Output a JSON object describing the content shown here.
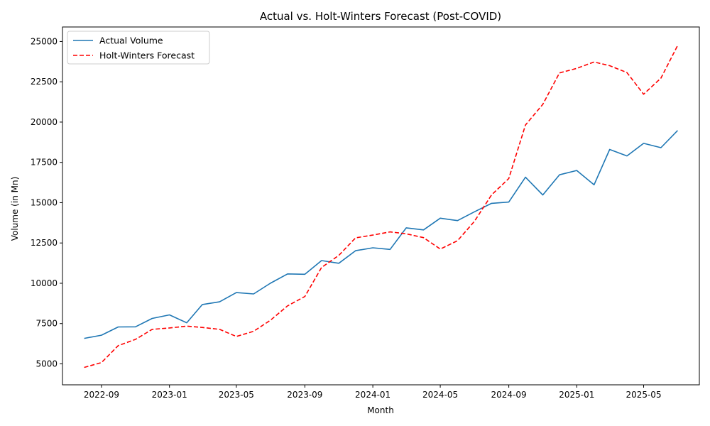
{
  "chart_data": {
    "type": "line",
    "title": "Actual vs. Holt-Winters Forecast (Post-COVID)",
    "xlabel": "Month",
    "ylabel": "Volume (in Mn)",
    "x": [
      "2022-08",
      "2022-09",
      "2022-10",
      "2022-11",
      "2022-12",
      "2023-01",
      "2023-02",
      "2023-03",
      "2023-04",
      "2023-05",
      "2023-06",
      "2023-07",
      "2023-08",
      "2023-09",
      "2023-10",
      "2023-11",
      "2023-12",
      "2024-01",
      "2024-02",
      "2024-03",
      "2024-04",
      "2024-05",
      "2024-06",
      "2024-07",
      "2024-08",
      "2024-09",
      "2024-10",
      "2024-11",
      "2024-12",
      "2025-01",
      "2025-02",
      "2025-03",
      "2025-04",
      "2025-05",
      "2025-06",
      "2025-07"
    ],
    "x_ticks": [
      "2022-09",
      "2023-01",
      "2023-05",
      "2023-09",
      "2024-01",
      "2024-05",
      "2024-09",
      "2025-01",
      "2025-05"
    ],
    "y_ticks": [
      5000,
      7500,
      10000,
      12500,
      15000,
      17500,
      20000,
      22500,
      25000
    ],
    "y_tick_labels": [
      "5000",
      "7500",
      "10000",
      "12500",
      "15000",
      "17500",
      "20000",
      "22500",
      "25000"
    ],
    "ylim": [
      3700,
      25900
    ],
    "xlim": [
      "2022-06-23",
      "2025-08-09"
    ],
    "grid": false,
    "legend_position": "top-left",
    "series": [
      {
        "name": "Actual Volume",
        "color": "#1f77b4",
        "style": "solid",
        "values": [
          6580,
          6780,
          7290,
          7300,
          7820,
          8040,
          7550,
          8680,
          8850,
          9420,
          9340,
          10000,
          10580,
          10560,
          11410,
          11240,
          12020,
          12200,
          12100,
          13440,
          13310,
          14040,
          13890,
          14430,
          14960,
          15040,
          16580,
          15480,
          16730,
          17000,
          16110,
          18300,
          17900,
          18680,
          18410,
          19480
        ]
      },
      {
        "name": "Holt-Winters Forecast",
        "color": "#ff0000",
        "style": "dashed",
        "values": [
          4780,
          5080,
          6130,
          6520,
          7140,
          7230,
          7340,
          7260,
          7140,
          6700,
          7020,
          7700,
          8600,
          9180,
          10980,
          11730,
          12820,
          12990,
          13190,
          13070,
          12830,
          12120,
          12640,
          13830,
          15480,
          16500,
          19820,
          21100,
          23050,
          23330,
          23730,
          23500,
          23070,
          21730,
          22730,
          24750
        ]
      }
    ]
  }
}
